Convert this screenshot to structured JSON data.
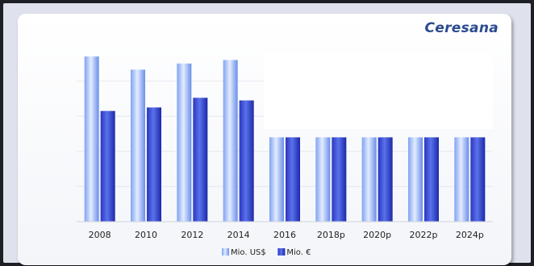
{
  "brand": "Ceresana",
  "colors": {
    "usd_light": "#d6e4ff",
    "usd_dark": "#5f86e8",
    "eur_light": "#4d64e6",
    "eur_dark": "#1d2bb0",
    "grid": "#e6e8ee"
  },
  "chart_data": {
    "type": "bar",
    "categories": [
      "2008",
      "2010",
      "2012",
      "2014",
      "2016",
      "2018p",
      "2020p",
      "2022p",
      "2024p"
    ],
    "series": [
      {
        "name": "Mio. US$",
        "values": [
          188,
          173,
          180,
          184,
          96,
          96,
          96,
          96,
          96
        ]
      },
      {
        "name": "Mio. €",
        "values": [
          126,
          130,
          141,
          138,
          96,
          96,
          96,
          96,
          96
        ]
      }
    ],
    "ylim": [
      0,
      200
    ],
    "grid": true,
    "legend": "bottom-center"
  }
}
